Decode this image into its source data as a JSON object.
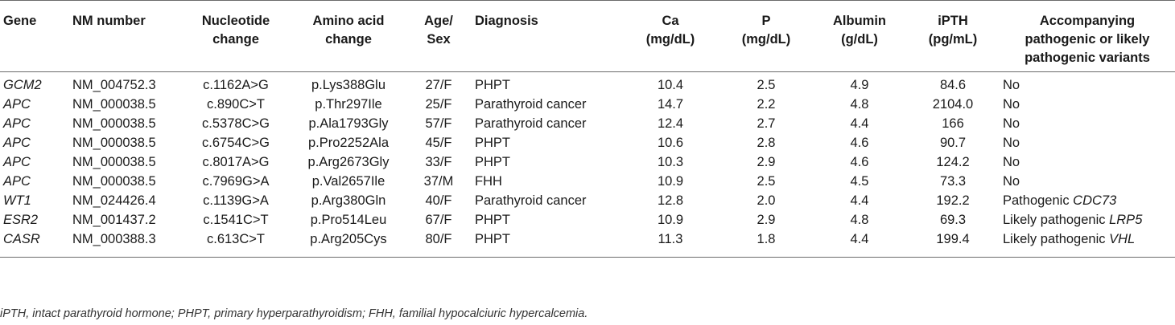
{
  "table": {
    "headers": [
      {
        "line1": "Gene",
        "line2": "",
        "line3": ""
      },
      {
        "line1": "NM number",
        "line2": "",
        "line3": ""
      },
      {
        "line1": "Nucleotide",
        "line2": "change",
        "line3": ""
      },
      {
        "line1": "Amino acid",
        "line2": "change",
        "line3": ""
      },
      {
        "line1": "Age/",
        "line2": "Sex",
        "line3": ""
      },
      {
        "line1": "Diagnosis",
        "line2": "",
        "line3": ""
      },
      {
        "line1": "Ca",
        "line2": "(mg/dL)",
        "line3": ""
      },
      {
        "line1": "P",
        "line2": "(mg/dL)",
        "line3": ""
      },
      {
        "line1": "Albumin",
        "line2": "(g/dL)",
        "line3": ""
      },
      {
        "line1": "iPTH",
        "line2": "(pg/mL)",
        "line3": ""
      },
      {
        "line1": "Accompanying",
        "line2": "pathogenic or likely",
        "line3": "pathogenic variants"
      }
    ],
    "rows": [
      {
        "gene": "GCM2",
        "nm": "NM_004752.3",
        "nuc": "c.1162A>G",
        "aa": "p.Lys388Glu",
        "agesex": "27/F",
        "dx": "PHPT",
        "ca": "10.4",
        "p": "2.5",
        "alb": "4.9",
        "ipth": "84.6",
        "acc": "No",
        "acc_gene": ""
      },
      {
        "gene": "APC",
        "nm": "NM_000038.5",
        "nuc": "c.890C>T",
        "aa": "p.Thr297Ile",
        "agesex": "25/F",
        "dx": "Parathyroid cancer",
        "ca": "14.7",
        "p": "2.2",
        "alb": "4.8",
        "ipth": "2104.0",
        "acc": "No",
        "acc_gene": ""
      },
      {
        "gene": "APC",
        "nm": "NM_000038.5",
        "nuc": "c.5378C>G",
        "aa": "p.Ala1793Gly",
        "agesex": "57/F",
        "dx": "Parathyroid cancer",
        "ca": "12.4",
        "p": "2.7",
        "alb": "4.4",
        "ipth": "166",
        "acc": "No",
        "acc_gene": ""
      },
      {
        "gene": "APC",
        "nm": "NM_000038.5",
        "nuc": "c.6754C>G",
        "aa": "p.Pro2252Ala",
        "agesex": "45/F",
        "dx": "PHPT",
        "ca": "10.6",
        "p": "2.8",
        "alb": "4.6",
        "ipth": "90.7",
        "acc": "No",
        "acc_gene": ""
      },
      {
        "gene": "APC",
        "nm": "NM_000038.5",
        "nuc": "c.8017A>G",
        "aa": "p.Arg2673Gly",
        "agesex": "33/F",
        "dx": "PHPT",
        "ca": "10.3",
        "p": "2.9",
        "alb": "4.6",
        "ipth": "124.2",
        "acc": "No",
        "acc_gene": ""
      },
      {
        "gene": "APC",
        "nm": "NM_000038.5",
        "nuc": "c.7969G>A",
        "aa": "p.Val2657Ile",
        "agesex": "37/M",
        "dx": "FHH",
        "ca": "10.9",
        "p": "2.5",
        "alb": "4.5",
        "ipth": "73.3",
        "acc": "No",
        "acc_gene": ""
      },
      {
        "gene": "WT1",
        "nm": "NM_024426.4",
        "nuc": "c.1139G>A",
        "aa": "p.Arg380Gln",
        "agesex": "40/F",
        "dx": "Parathyroid cancer",
        "ca": "12.8",
        "p": "2.0",
        "alb": "4.4",
        "ipth": "192.2",
        "acc": "Pathogenic ",
        "acc_gene": "CDC73"
      },
      {
        "gene": "ESR2",
        "nm": "NM_001437.2",
        "nuc": "c.1541C>T",
        "aa": "p.Pro514Leu",
        "agesex": "67/F",
        "dx": "PHPT",
        "ca": "10.9",
        "p": "2.9",
        "alb": "4.8",
        "ipth": "69.3",
        "acc": "Likely pathogenic ",
        "acc_gene": "LRP5"
      },
      {
        "gene": "CASR",
        "nm": "NM_000388.3",
        "nuc": "c.613C>T",
        "aa": "p.Arg205Cys",
        "agesex": "80/F",
        "dx": "PHPT",
        "ca": "11.3",
        "p": "1.8",
        "alb": "4.4",
        "ipth": "199.4",
        "acc": "Likely pathogenic ",
        "acc_gene": "VHL"
      }
    ],
    "footnote": "iPTH, intact parathyroid hormone; PHPT, primary hyperparathyroidism; FHH, familial hypocalciuric hypercalcemia."
  }
}
